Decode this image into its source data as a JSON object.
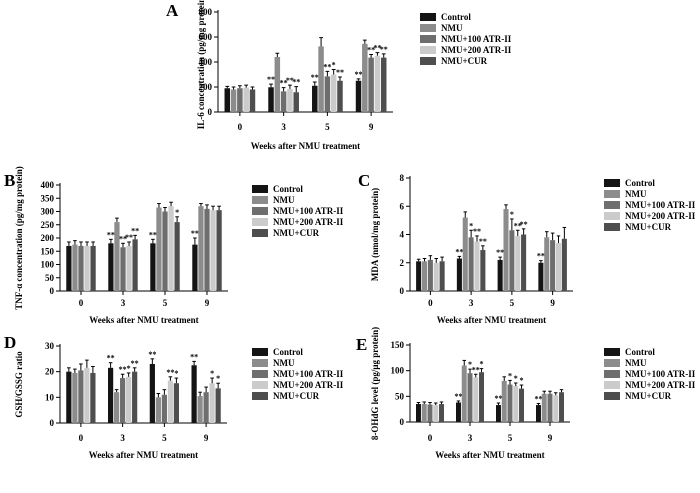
{
  "figure": {
    "series_names": [
      "Control",
      "NMU",
      "NMU+100 ATR-II",
      "NMU+200 ATR-II",
      "NMU+CUR"
    ],
    "colors": {
      "Control": "#141414",
      "NMU": "#8c8c8c",
      "NMU+100 ATR-II": "#6e6e6e",
      "NMU+200 ATR-II": "#cbcbcb",
      "NMU+CUR": "#4e4e4e"
    }
  },
  "chart_data": [
    {
      "panel": "A",
      "type": "bar",
      "title": "",
      "xlabel": "Weeks after NMU treatment",
      "ylabel": "IL-6 concentration (pg/mg protein)",
      "categories": [
        "0",
        "3",
        "5",
        "9"
      ],
      "ylim": [
        0,
        800
      ],
      "yticks": [
        0,
        200,
        400,
        600,
        800
      ],
      "series": [
        {
          "name": "Control",
          "values": [
            190,
            198,
            210,
            250
          ],
          "errors": [
            15,
            25,
            30,
            15
          ],
          "sig": [
            "",
            "**",
            "**",
            "**"
          ]
        },
        {
          "name": "NMU",
          "values": [
            180,
            440,
            525,
            545
          ],
          "errors": [
            20,
            30,
            70,
            30
          ],
          "sig": [
            "",
            "",
            "",
            ""
          ]
        },
        {
          "name": "NMU+100 ATR-II",
          "values": [
            190,
            165,
            285,
            435
          ],
          "errors": [
            20,
            30,
            40,
            25
          ],
          "sig": [
            "",
            "**",
            "**",
            "**"
          ]
        },
        {
          "name": "NMU+200 ATR-II",
          "values": [
            195,
            185,
            300,
            450
          ],
          "errors": [
            20,
            30,
            40,
            25
          ],
          "sig": [
            "",
            "**",
            "*",
            "**"
          ]
        },
        {
          "name": "NMU+CUR",
          "values": [
            180,
            158,
            250,
            435
          ],
          "errors": [
            20,
            45,
            30,
            30
          ],
          "sig": [
            "",
            "**",
            "**",
            "**"
          ]
        }
      ]
    },
    {
      "panel": "B",
      "type": "bar",
      "title": "",
      "xlabel": "Weeks after NMU treatment",
      "ylabel": "TNF-α concentration (pg/mg protein)",
      "categories": [
        "0",
        "3",
        "5",
        "9"
      ],
      "ylim": [
        0,
        400
      ],
      "yticks": [
        0,
        50,
        100,
        150,
        200,
        250,
        300,
        350,
        400
      ],
      "series": [
        {
          "name": "Control",
          "values": [
            170,
            180,
            180,
            175
          ],
          "errors": [
            15,
            15,
            15,
            25
          ],
          "sig": [
            "",
            "**",
            "**",
            "**"
          ]
        },
        {
          "name": "NMU",
          "values": [
            175,
            260,
            315,
            320
          ],
          "errors": [
            15,
            15,
            15,
            10
          ],
          "sig": [
            "",
            "",
            "",
            ""
          ]
        },
        {
          "name": "NMU+100 ATR-II",
          "values": [
            170,
            165,
            300,
            310
          ],
          "errors": [
            15,
            15,
            15,
            15
          ],
          "sig": [
            "",
            "**",
            "",
            ""
          ]
        },
        {
          "name": "NMU+200 ATR-II",
          "values": [
            170,
            170,
            320,
            305
          ],
          "errors": [
            15,
            15,
            15,
            15
          ],
          "sig": [
            "",
            "**",
            "",
            ""
          ]
        },
        {
          "name": "NMU+CUR",
          "values": [
            170,
            195,
            260,
            305
          ],
          "errors": [
            15,
            15,
            20,
            15
          ],
          "sig": [
            "",
            "**",
            "*",
            ""
          ]
        }
      ]
    },
    {
      "panel": "C",
      "type": "bar",
      "title": "",
      "xlabel": "Weeks after NMU treatment",
      "ylabel": "MDA (nmol/mg protein)",
      "categories": [
        "0",
        "3",
        "5",
        "9"
      ],
      "ylim": [
        0,
        8
      ],
      "yticks": [
        0,
        2,
        4,
        6,
        8
      ],
      "series": [
        {
          "name": "Control",
          "values": [
            2.1,
            2.3,
            2.2,
            2.0
          ],
          "errors": [
            0.15,
            0.15,
            0.2,
            0.15
          ],
          "sig": [
            "",
            "**",
            "**",
            "**"
          ]
        },
        {
          "name": "NMU",
          "values": [
            2.1,
            5.2,
            5.8,
            3.8
          ],
          "errors": [
            0.2,
            0.4,
            0.3,
            0.4
          ],
          "sig": [
            "",
            "",
            "",
            ""
          ]
        },
        {
          "name": "NMU+100 ATR-II",
          "values": [
            2.2,
            3.8,
            4.3,
            3.6
          ],
          "errors": [
            0.3,
            0.5,
            0.8,
            0.5
          ],
          "sig": [
            "",
            "*",
            "*",
            ""
          ]
        },
        {
          "name": "NMU+200 ATR-II",
          "values": [
            2.0,
            3.5,
            3.9,
            3.4
          ],
          "errors": [
            0.3,
            0.4,
            0.4,
            0.5
          ],
          "sig": [
            "",
            "**",
            "**",
            ""
          ]
        },
        {
          "name": "NMU+CUR",
          "values": [
            2.1,
            2.9,
            4.0,
            3.7
          ],
          "errors": [
            0.3,
            0.3,
            0.4,
            0.8
          ],
          "sig": [
            "",
            "**",
            "**",
            ""
          ]
        }
      ]
    },
    {
      "panel": "D",
      "type": "bar",
      "title": "",
      "xlabel": "Weeks after NMU treatment",
      "ylabel": "GSH/GSSG ratio",
      "categories": [
        "0",
        "3",
        "5",
        "9"
      ],
      "ylim": [
        0,
        30
      ],
      "yticks": [
        0,
        10,
        20,
        30
      ],
      "series": [
        {
          "name": "Control",
          "values": [
            20,
            21.5,
            23,
            22.5
          ],
          "errors": [
            1.5,
            2,
            2,
            1.5
          ],
          "sig": [
            "",
            "**",
            "**",
            "**"
          ]
        },
        {
          "name": "NMU",
          "values": [
            19.5,
            12,
            10,
            10.5
          ],
          "errors": [
            1.5,
            1,
            1.5,
            1.5
          ],
          "sig": [
            "",
            "",
            "",
            ""
          ]
        },
        {
          "name": "NMU+100 ATR-II",
          "values": [
            20.5,
            17.5,
            11,
            12
          ],
          "errors": [
            2.5,
            1.5,
            2,
            2
          ],
          "sig": [
            "",
            "**",
            "",
            ""
          ]
        },
        {
          "name": "NMU+200 ATR-II",
          "values": [
            21.5,
            18,
            16.5,
            15.5
          ],
          "errors": [
            3,
            1.5,
            1.5,
            2
          ],
          "sig": [
            "",
            "*",
            "**",
            "*"
          ]
        },
        {
          "name": "NMU+CUR",
          "values": [
            19.5,
            20,
            15.5,
            13.5
          ],
          "errors": [
            2.5,
            1.5,
            2,
            2
          ],
          "sig": [
            "",
            "**",
            "*",
            "*"
          ]
        }
      ]
    },
    {
      "panel": "E",
      "type": "bar",
      "title": "",
      "xlabel": "Weeks after NMU treatment",
      "ylabel": "8-OHdG level (pg/μg protein)",
      "categories": [
        "0",
        "3",
        "5",
        "9"
      ],
      "ylim": [
        0,
        150
      ],
      "yticks": [
        0,
        50,
        100,
        150
      ],
      "series": [
        {
          "name": "Control",
          "values": [
            35,
            38,
            33,
            33
          ],
          "errors": [
            3,
            3,
            4,
            3
          ],
          "sig": [
            "",
            "**",
            "**",
            "**"
          ]
        },
        {
          "name": "NMU",
          "values": [
            35,
            110,
            80,
            55
          ],
          "errors": [
            4,
            10,
            8,
            5
          ],
          "sig": [
            "",
            "",
            "",
            ""
          ]
        },
        {
          "name": "NMU+100 ATR-II",
          "values": [
            34,
            95,
            73,
            55
          ],
          "errors": [
            4,
            8,
            8,
            5
          ],
          "sig": [
            "",
            "*",
            "*",
            ""
          ]
        },
        {
          "name": "NMU+200 ATR-II",
          "values": [
            33,
            87,
            70,
            52
          ],
          "errors": [
            4,
            6,
            6,
            5
          ],
          "sig": [
            "",
            "**",
            "*",
            ""
          ]
        },
        {
          "name": "NMU+CUR",
          "values": [
            35,
            97,
            65,
            58
          ],
          "errors": [
            4,
            7,
            7,
            5
          ],
          "sig": [
            "",
            "*",
            "*",
            ""
          ]
        }
      ]
    }
  ]
}
